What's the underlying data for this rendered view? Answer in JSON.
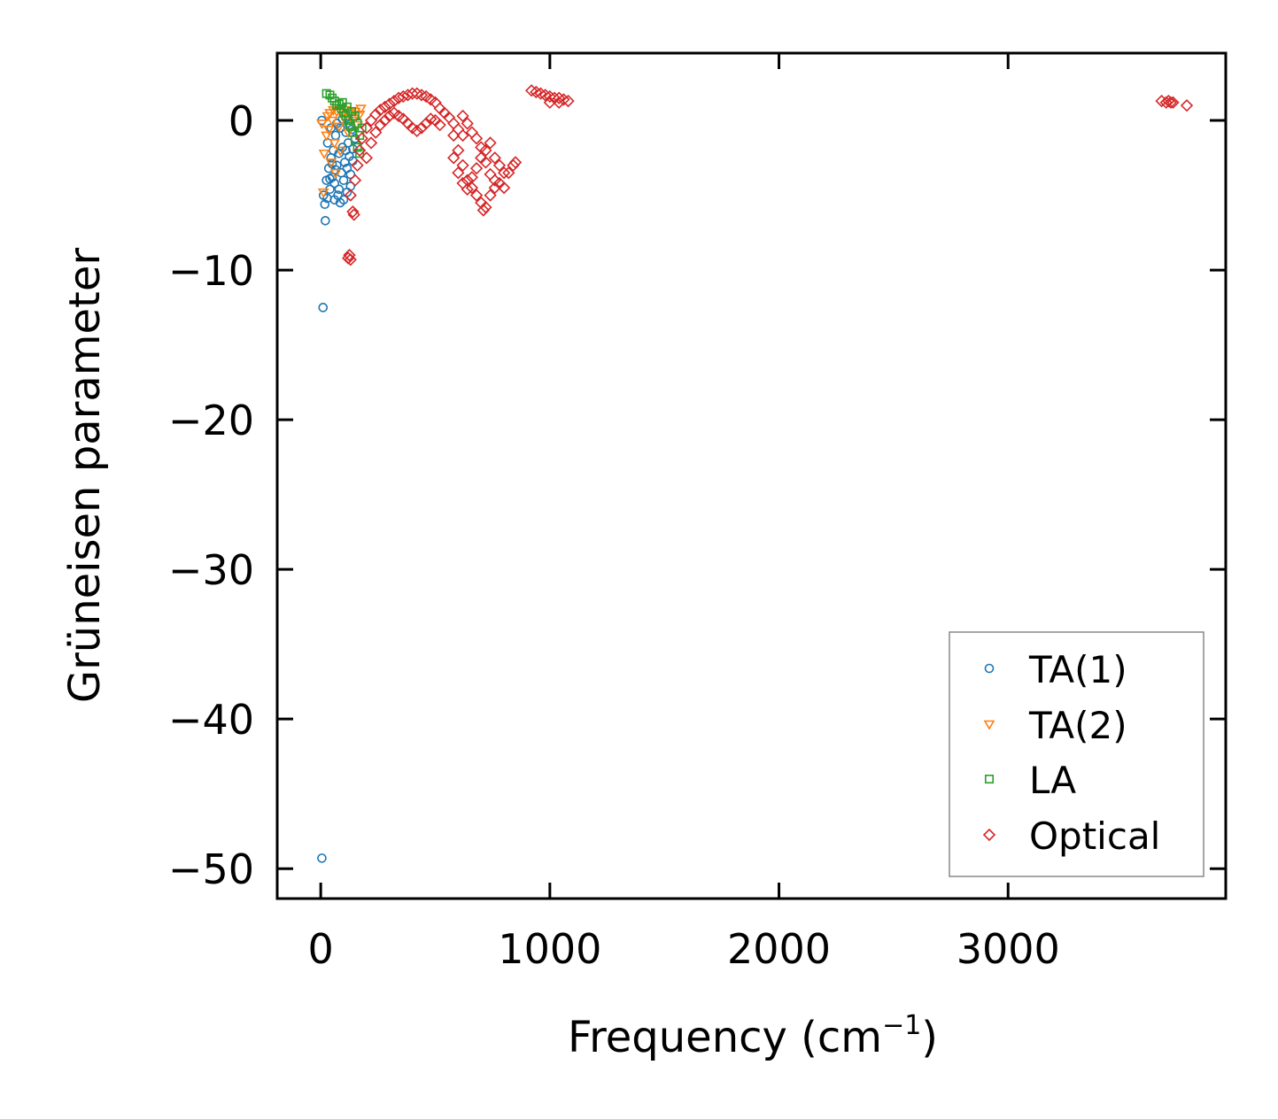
{
  "chart_data": {
    "type": "scatter",
    "title": "",
    "xlabel": "Frequency (cm",
    "xlabel_sup": "−1",
    "xlabel_end": ")",
    "ylabel": "Grüneisen parameter",
    "xlim": [
      -190,
      3950
    ],
    "ylim": [
      -52,
      4.5
    ],
    "xticks": [
      0,
      1000,
      2000,
      3000
    ],
    "xtick_labels": [
      "0",
      "1000",
      "2000",
      "3000"
    ],
    "yticks": [
      0,
      -10,
      -20,
      -30,
      -40,
      -50
    ],
    "ytick_labels": [
      "0",
      "−10",
      "−20",
      "−30",
      "−40",
      "−50"
    ],
    "legend_position": "lower-right",
    "series": [
      {
        "name": "TA(1)",
        "marker": "circle",
        "color": "#1f77b4",
        "points": [
          [
            5,
            -49.3
          ],
          [
            10,
            -12.5
          ],
          [
            12,
            -5.0
          ],
          [
            20,
            -6.7
          ],
          [
            18,
            -5.6
          ],
          [
            28,
            -5.2
          ],
          [
            25,
            -4.0
          ],
          [
            35,
            -3.2
          ],
          [
            40,
            -4.6
          ],
          [
            45,
            -2.5
          ],
          [
            30,
            -1.5
          ],
          [
            50,
            -3.8
          ],
          [
            55,
            -2.0
          ],
          [
            60,
            -4.2
          ],
          [
            65,
            -1.0
          ],
          [
            70,
            -3.0
          ],
          [
            75,
            -5.0
          ],
          [
            80,
            -2.2
          ],
          [
            85,
            -0.5
          ],
          [
            90,
            -3.5
          ],
          [
            95,
            -1.8
          ],
          [
            100,
            -4.0
          ],
          [
            105,
            -2.8
          ],
          [
            110,
            -0.8
          ],
          [
            115,
            -3.2
          ],
          [
            120,
            -1.5
          ],
          [
            125,
            -2.4
          ],
          [
            130,
            -4.4
          ],
          [
            135,
            -0.6
          ],
          [
            140,
            -1.9
          ],
          [
            145,
            0.2
          ],
          [
            150,
            -1.2
          ],
          [
            60,
            -5.3
          ],
          [
            85,
            -5.5
          ],
          [
            100,
            -5.3
          ],
          [
            45,
            -0.5
          ],
          [
            70,
            -0.2
          ],
          [
            95,
            0.1
          ],
          [
            130,
            -3.6
          ],
          [
            115,
            -4.8
          ],
          [
            80,
            -4.6
          ],
          [
            65,
            -3.3
          ],
          [
            110,
            -2.0
          ],
          [
            50,
            -2.9
          ],
          [
            40,
            -3.9
          ],
          [
            125,
            -0.3
          ],
          [
            140,
            -2.7
          ],
          [
            5,
            0.0
          ]
        ]
      },
      {
        "name": "TA(2)",
        "marker": "triangle-down",
        "color": "#ff7f0e",
        "points": [
          [
            5,
            -0.2
          ],
          [
            15,
            -2.2
          ],
          [
            25,
            -1.0
          ],
          [
            30,
            0.3
          ],
          [
            40,
            0.5
          ],
          [
            50,
            0.0
          ],
          [
            55,
            0.7
          ],
          [
            60,
            -1.5
          ],
          [
            70,
            0.6
          ],
          [
            80,
            -0.4
          ],
          [
            90,
            0.8
          ],
          [
            100,
            0.2
          ],
          [
            110,
            0.7
          ],
          [
            120,
            -0.8
          ],
          [
            130,
            0.5
          ],
          [
            140,
            0.0
          ],
          [
            150,
            0.6
          ],
          [
            160,
            -0.3
          ],
          [
            170,
            0.4
          ],
          [
            175,
            0.8
          ],
          [
            45,
            -2.8
          ],
          [
            65,
            -3.5
          ],
          [
            35,
            -0.6
          ],
          [
            85,
            -2.0
          ],
          [
            12,
            -4.8
          ]
        ]
      },
      {
        "name": "LA",
        "marker": "square",
        "color": "#2ca02c",
        "points": [
          [
            25,
            1.8
          ],
          [
            40,
            1.7
          ],
          [
            50,
            1.5
          ],
          [
            60,
            1.3
          ],
          [
            70,
            1.0
          ],
          [
            80,
            1.1
          ],
          [
            90,
            0.8
          ],
          [
            100,
            0.5
          ],
          [
            110,
            0.3
          ],
          [
            120,
            0.0
          ],
          [
            130,
            -0.4
          ],
          [
            140,
            -0.8
          ],
          [
            150,
            -1.3
          ],
          [
            160,
            -1.8
          ],
          [
            170,
            -2.2
          ],
          [
            160,
            -0.2
          ],
          [
            150,
            0.3
          ],
          [
            170,
            -1.0
          ],
          [
            180,
            -0.5
          ],
          [
            135,
            0.6
          ],
          [
            115,
            0.9
          ],
          [
            95,
            1.2
          ]
        ]
      },
      {
        "name": "Optical",
        "marker": "diamond",
        "color": "#d62728",
        "points": [
          [
            120,
            -9.2
          ],
          [
            125,
            -9.0
          ],
          [
            130,
            -9.3
          ],
          [
            140,
            -6.1
          ],
          [
            145,
            -6.3
          ],
          [
            130,
            -5.0
          ],
          [
            150,
            -4.0
          ],
          [
            160,
            -3.0
          ],
          [
            170,
            -2.0
          ],
          [
            180,
            -1.2
          ],
          [
            200,
            -0.5
          ],
          [
            220,
            0.0
          ],
          [
            240,
            0.4
          ],
          [
            260,
            0.7
          ],
          [
            280,
            0.9
          ],
          [
            300,
            1.1
          ],
          [
            320,
            1.3
          ],
          [
            340,
            1.5
          ],
          [
            360,
            1.6
          ],
          [
            380,
            1.7
          ],
          [
            400,
            1.8
          ],
          [
            420,
            1.8
          ],
          [
            440,
            1.7
          ],
          [
            460,
            1.6
          ],
          [
            480,
            1.4
          ],
          [
            500,
            1.2
          ],
          [
            520,
            0.8
          ],
          [
            540,
            0.5
          ],
          [
            560,
            0.2
          ],
          [
            580,
            -0.2
          ],
          [
            600,
            -0.6
          ],
          [
            620,
            -1.0
          ],
          [
            200,
            -2.5
          ],
          [
            220,
            -1.5
          ],
          [
            240,
            -0.8
          ],
          [
            260,
            -0.3
          ],
          [
            280,
            0.0
          ],
          [
            300,
            0.3
          ],
          [
            320,
            0.5
          ],
          [
            340,
            0.3
          ],
          [
            360,
            0.1
          ],
          [
            380,
            -0.2
          ],
          [
            400,
            -0.5
          ],
          [
            420,
            -0.7
          ],
          [
            440,
            -0.5
          ],
          [
            460,
            -0.2
          ],
          [
            480,
            0.1
          ],
          [
            500,
            0.0
          ],
          [
            520,
            -0.3
          ],
          [
            580,
            -1.0
          ],
          [
            600,
            -2.0
          ],
          [
            620,
            -3.0
          ],
          [
            640,
            -4.0
          ],
          [
            660,
            -4.5
          ],
          [
            680,
            -5.0
          ],
          [
            700,
            -5.5
          ],
          [
            710,
            -6.0
          ],
          [
            720,
            -5.8
          ],
          [
            740,
            -5.0
          ],
          [
            760,
            -4.5
          ],
          [
            780,
            -4.2
          ],
          [
            800,
            -4.5
          ],
          [
            820,
            -3.5
          ],
          [
            840,
            -3.0
          ],
          [
            850,
            -2.8
          ],
          [
            580,
            -2.5
          ],
          [
            600,
            -3.5
          ],
          [
            620,
            -4.2
          ],
          [
            640,
            -4.6
          ],
          [
            660,
            -3.8
          ],
          [
            680,
            -3.2
          ],
          [
            700,
            -2.5
          ],
          [
            720,
            -2.0
          ],
          [
            740,
            -1.5
          ],
          [
            760,
            -2.5
          ],
          [
            780,
            -3.0
          ],
          [
            800,
            -3.5
          ],
          [
            620,
            0.3
          ],
          [
            640,
            -0.2
          ],
          [
            660,
            -0.8
          ],
          [
            680,
            -1.2
          ],
          [
            700,
            -1.8
          ],
          [
            720,
            -2.8
          ],
          [
            740,
            -3.6
          ],
          [
            760,
            -4.0
          ],
          [
            920,
            2.0
          ],
          [
            940,
            1.9
          ],
          [
            960,
            1.8
          ],
          [
            980,
            1.7
          ],
          [
            1000,
            1.6
          ],
          [
            1020,
            1.5
          ],
          [
            1040,
            1.5
          ],
          [
            1060,
            1.4
          ],
          [
            1080,
            1.3
          ],
          [
            1000,
            1.2
          ],
          [
            1040,
            1.2
          ],
          [
            3670,
            1.3
          ],
          [
            3690,
            1.2
          ],
          [
            3700,
            1.3
          ],
          [
            3710,
            1.2
          ],
          [
            3720,
            1.2
          ],
          [
            3780,
            1.0
          ]
        ]
      }
    ]
  }
}
